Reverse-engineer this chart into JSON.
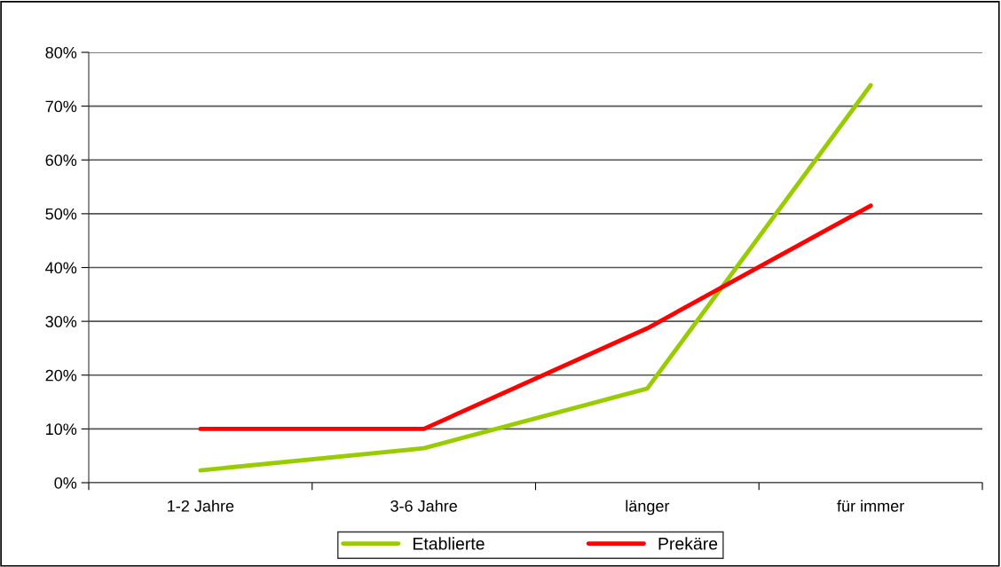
{
  "chart_data": {
    "type": "line",
    "categories": [
      "1-2 Jahre",
      "3-6 Jahre",
      "länger",
      "für immer"
    ],
    "series": [
      {
        "name": "Etablierte",
        "color": "#99cc00",
        "values": [
          2.3,
          6.4,
          17.5,
          73.9
        ]
      },
      {
        "name": "Prekäre",
        "color": "#ff0000",
        "values": [
          10,
          10,
          28.7,
          51.5
        ]
      }
    ],
    "ylim": [
      0,
      80
    ],
    "yticks": [
      {
        "value": 0,
        "label": "0%"
      },
      {
        "value": 10,
        "label": "10%"
      },
      {
        "value": 20,
        "label": "20%"
      },
      {
        "value": 30,
        "label": "30%"
      },
      {
        "value": 40,
        "label": "40%"
      },
      {
        "value": 50,
        "label": "50%"
      },
      {
        "value": 60,
        "label": "60%"
      },
      {
        "value": 70,
        "label": "70%"
      },
      {
        "value": 80,
        "label": "80%"
      }
    ],
    "grid": "y",
    "legend": "bottom",
    "marker": "none",
    "line_style": "solid"
  }
}
